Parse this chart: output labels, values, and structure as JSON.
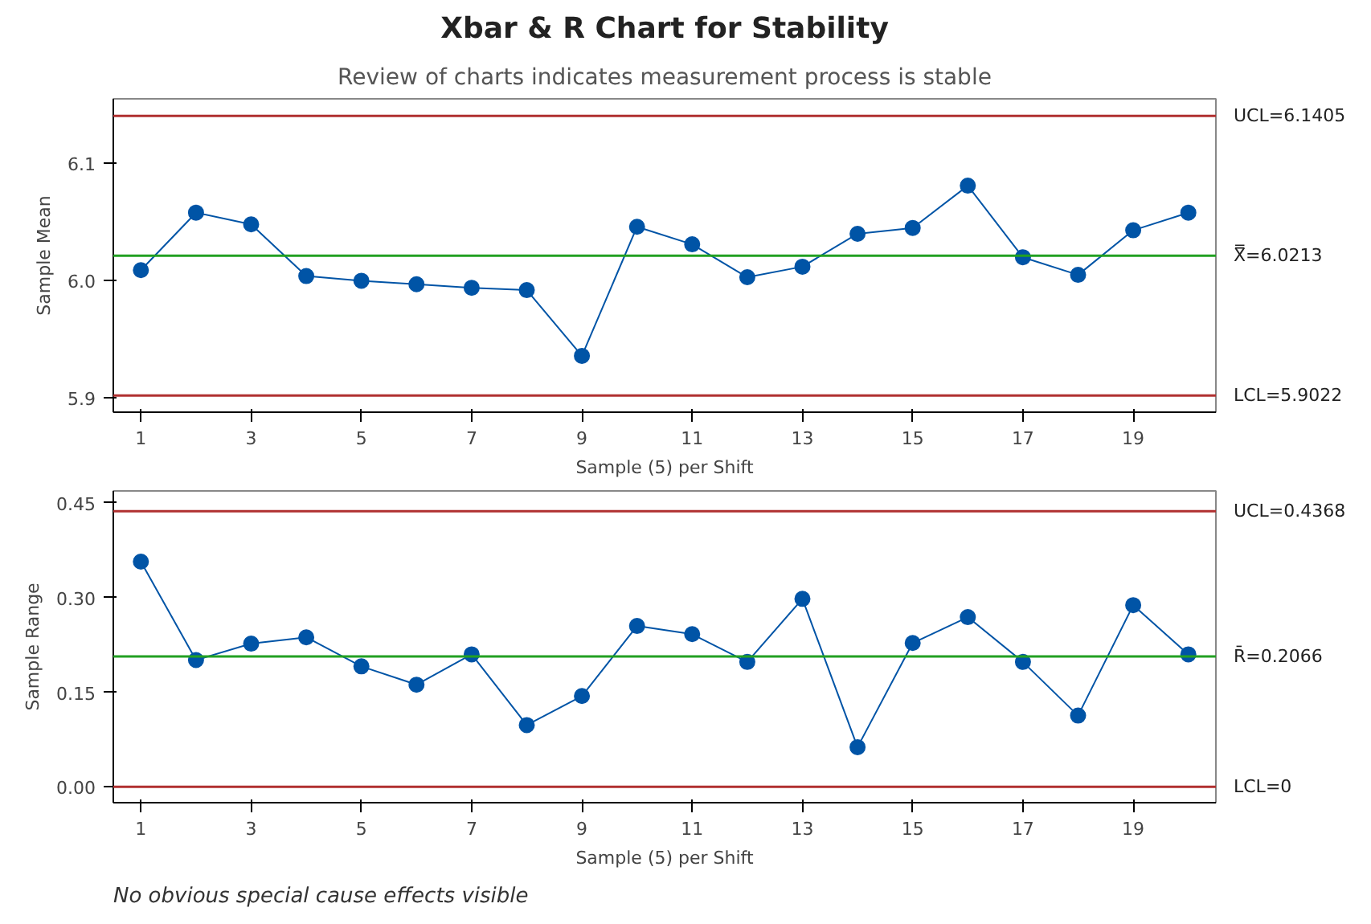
{
  "chart_data": [
    {
      "type": "line",
      "title": "Xbar & R Chart for Stability",
      "subtitle": "Review of charts indicates measurement process is stable",
      "xlabel": "Sample (5) per Shift",
      "ylabel": "Sample Mean",
      "x": [
        1,
        2,
        3,
        4,
        5,
        6,
        7,
        8,
        9,
        10,
        11,
        12,
        13,
        14,
        15,
        16,
        17,
        18,
        19,
        20
      ],
      "series": [
        {
          "color": "#0054a6",
          "values": [
            6.009,
            6.058,
            6.048,
            6.004,
            6.0,
            5.997,
            5.994,
            5.992,
            5.936,
            6.046,
            6.031,
            6.003,
            6.012,
            6.04,
            6.045,
            6.081,
            6.02,
            6.005,
            6.043,
            6.058
          ]
        }
      ],
      "xlim": [
        0.5,
        20.5
      ],
      "xticks": [
        1,
        3,
        5,
        7,
        9,
        11,
        13,
        15,
        17,
        19
      ],
      "ylim": [
        5.888,
        6.155
      ],
      "yticks": [
        5.9,
        {
          "value": 6.0,
          "label": "6.0"
        },
        6.1
      ],
      "ref_lines": [
        {
          "axis": "y",
          "value": 6.1405,
          "label": "UCL=6.1405",
          "color": "#b03030"
        },
        {
          "axis": "y",
          "value": 6.0213,
          "label": "X̿=6.0213",
          "color": "#22a022"
        },
        {
          "axis": "y",
          "value": 5.9022,
          "label": "LCL=5.9022",
          "color": "#b03030"
        }
      ],
      "marker": "circle",
      "line_style": "solid",
      "grid": false
    },
    {
      "type": "line",
      "xlabel": "Sample (5) per Shift",
      "ylabel": "Sample Range",
      "x": [
        1,
        2,
        3,
        4,
        5,
        6,
        7,
        8,
        9,
        10,
        11,
        12,
        13,
        14,
        15,
        16,
        17,
        18,
        19,
        20
      ],
      "series": [
        {
          "color": "#0054a6",
          "values": [
            0.357,
            0.201,
            0.227,
            0.237,
            0.191,
            0.162,
            0.21,
            0.098,
            0.144,
            0.255,
            0.242,
            0.198,
            0.298,
            0.063,
            0.228,
            0.269,
            0.198,
            0.113,
            0.288,
            0.21
          ]
        }
      ],
      "xlim": [
        0.5,
        20.5
      ],
      "xticks": [
        1,
        3,
        5,
        7,
        9,
        11,
        13,
        15,
        17,
        19
      ],
      "ylim": [
        -0.025,
        0.469
      ],
      "yticks": [
        {
          "value": 0,
          "label": "0.00"
        },
        0.15,
        {
          "value": 0.3,
          "label": "0.30"
        },
        0.45
      ],
      "ref_lines": [
        {
          "axis": "y",
          "value": 0.4368,
          "label": "UCL=0.4368",
          "color": "#b03030"
        },
        {
          "axis": "y",
          "value": 0.2066,
          "label": "R̄=0.2066",
          "color": "#22a022"
        },
        {
          "axis": "y",
          "value": 0,
          "label": "LCL=0",
          "color": "#b03030"
        }
      ],
      "annotations": [
        "No obvious special cause effects visible"
      ],
      "marker": "circle",
      "line_style": "solid",
      "grid": false
    }
  ]
}
